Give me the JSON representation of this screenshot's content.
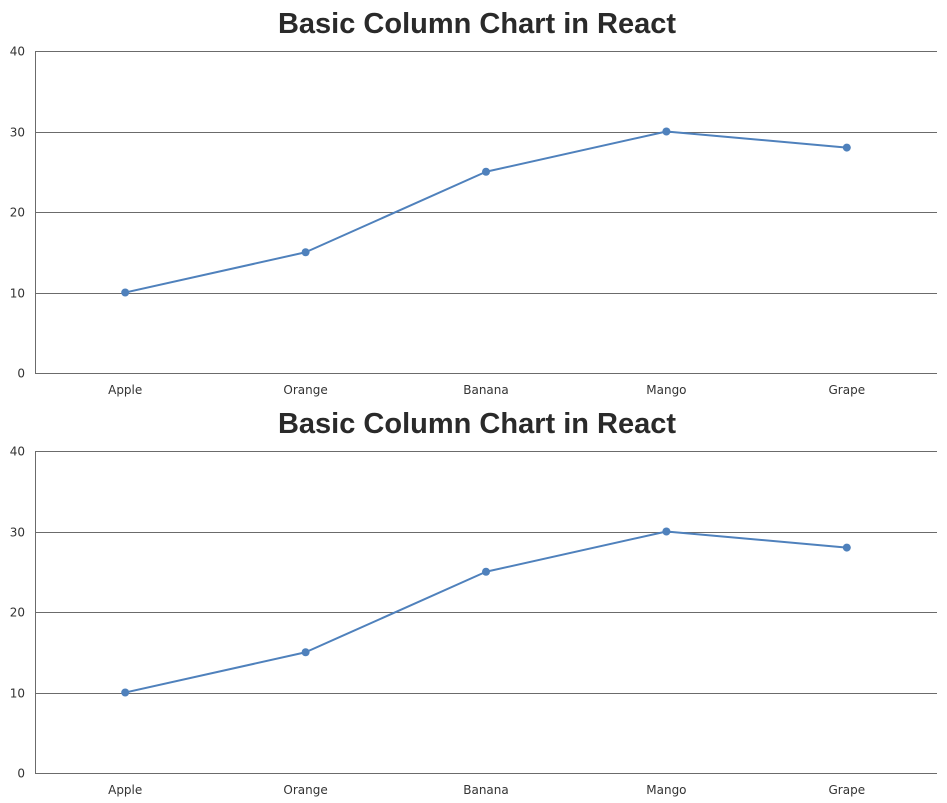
{
  "chart_data": [
    {
      "type": "line",
      "title": "Basic Column Chart in React",
      "categories": [
        "Apple",
        "Orange",
        "Banana",
        "Mango",
        "Grape"
      ],
      "series": [
        {
          "values": [
            10,
            15,
            25,
            30,
            28
          ],
          "color": "#4f81bc"
        }
      ],
      "yticks": [
        0,
        10,
        20,
        30,
        40
      ],
      "ylim": [
        0,
        40
      ],
      "grid": true,
      "legend": "none"
    },
    {
      "type": "line",
      "title": "Basic Column Chart in React",
      "categories": [
        "Apple",
        "Orange",
        "Banana",
        "Mango",
        "Grape"
      ],
      "series": [
        {
          "values": [
            10,
            15,
            25,
            30,
            28
          ],
          "color": "#4f81bc"
        }
      ],
      "yticks": [
        0,
        10,
        20,
        30,
        40
      ],
      "ylim": [
        0,
        40
      ],
      "grid": true,
      "legend": "none"
    }
  ]
}
